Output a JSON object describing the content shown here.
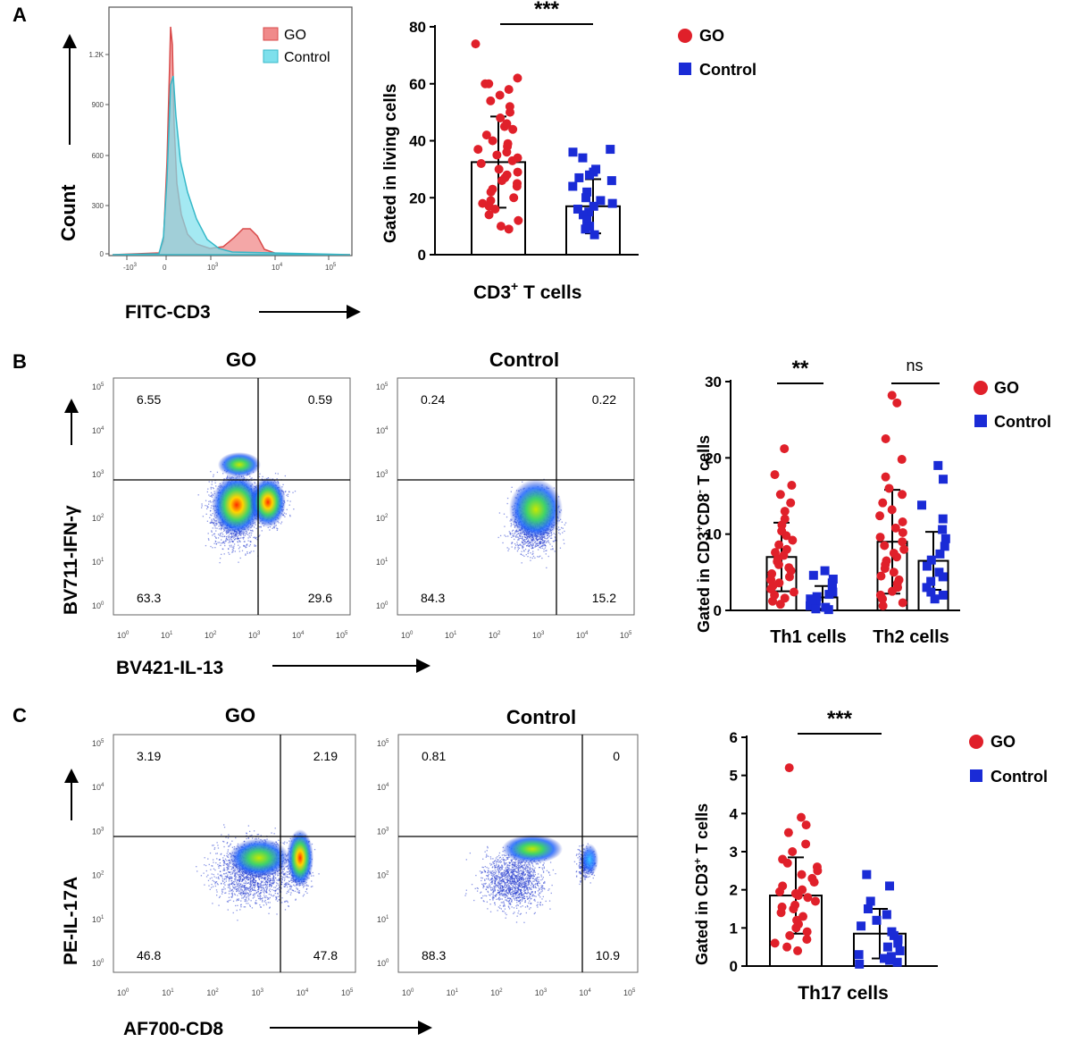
{
  "colors": {
    "go": "#e0202a",
    "control": "#1a2bd6",
    "go_hist": "#f08a8a",
    "control_hist": "#7ee0ec",
    "axis": "#000000"
  },
  "legend": {
    "go": "GO",
    "control": "Control"
  },
  "panelA": {
    "letter": "A",
    "histogram": {
      "ylabel": "Count",
      "xlabel": "FITC-CD3",
      "yticks": [
        "1.2K",
        "900",
        "600",
        "300",
        "0"
      ],
      "xticks": [
        "-10",
        "0",
        "10",
        "10",
        "10"
      ],
      "xtick_exps": [
        "3",
        "",
        "3",
        "4",
        "5"
      ],
      "legend_go": "GO",
      "legend_control": "Control"
    },
    "bar": {
      "ylabel": "Gated in living cells",
      "xlabel_main": "CD3",
      "xlabel_sup": "+",
      "xlabel_rest": " T cells",
      "yticks": [
        "80",
        "60",
        "40",
        "20",
        "0"
      ],
      "significance": "***"
    }
  },
  "panelB": {
    "letter": "B",
    "scatter_go": {
      "title": "GO",
      "q_ul": "6.55",
      "q_ur": "0.59",
      "q_ll": "63.3",
      "q_lr": "29.6"
    },
    "scatter_control": {
      "title": "Control",
      "q_ul": "0.24",
      "q_ur": "0.22",
      "q_ll": "84.3",
      "q_lr": "15.2"
    },
    "ylabel": "BV711-IFN-γ",
    "xlabel": "BV421-IL-13",
    "log_ticks_base": "10",
    "log_exps": [
      "0",
      "1",
      "2",
      "3",
      "4",
      "5"
    ],
    "bar": {
      "ylabel_pre": "Gated in CD3",
      "ylabel_sup1": "+",
      "ylabel_mid": "CD8",
      "ylabel_sup2": "-",
      "ylabel_post": " T cells",
      "yticks": [
        "30",
        "20",
        "10",
        "0"
      ],
      "group1": "Th1  cells",
      "group2": "Th2  cells",
      "sig1": "**",
      "sig2": "ns"
    }
  },
  "panelC": {
    "letter": "C",
    "scatter_go": {
      "title": "GO",
      "q_ul": "3.19",
      "q_ur": "2.19",
      "q_ll": "46.8",
      "q_lr": "47.8"
    },
    "scatter_control": {
      "title": "Control",
      "q_ul": "0.81",
      "q_ur": "0",
      "q_ll": "88.3",
      "q_lr": "10.9"
    },
    "ylabel": "PE-IL-17A",
    "xlabel": "AF700-CD8",
    "bar": {
      "ylabel_pre": "Gated in CD3",
      "ylabel_sup": "+",
      "ylabel_post": " T cells",
      "yticks": [
        "6",
        "5",
        "4",
        "3",
        "2",
        "1",
        "0"
      ],
      "xlabel": "Th17 cells",
      "significance": "***"
    }
  },
  "chart_data": [
    {
      "type": "bar",
      "title": "CD3+ T cells",
      "ylabel": "Gated in living cells",
      "ylim": [
        0,
        80
      ],
      "series": [
        {
          "name": "GO",
          "mean": 32.5,
          "sd": 16,
          "points": [
            74,
            62,
            60,
            60,
            58,
            56,
            54,
            52,
            50,
            48,
            46,
            45,
            44,
            42,
            40,
            39,
            38,
            37,
            36,
            35,
            34,
            33,
            32,
            30,
            29,
            28,
            27,
            26,
            25,
            24,
            23,
            22,
            20,
            19,
            18,
            17,
            16,
            14,
            12,
            10,
            9
          ]
        },
        {
          "name": "Control",
          "mean": 17,
          "sd": 9.5,
          "points": [
            37,
            36,
            34,
            30,
            29,
            28,
            27,
            26,
            24,
            22,
            20,
            19,
            18,
            17,
            16,
            15,
            14,
            12,
            10,
            9,
            7
          ]
        }
      ]
    },
    {
      "type": "bar",
      "title": "CD3+CD8- T cells",
      "ylabel": "Gated in CD3+CD8- T cells",
      "ylim": [
        0,
        30
      ],
      "categories": [
        "Th1 cells",
        "Th2 cells"
      ],
      "series": [
        {
          "name": "GO",
          "means": [
            7,
            9
          ],
          "sds": [
            4.5,
            6.8
          ],
          "points": [
            [
              21.2,
              17.8,
              16.4,
              15.2,
              14.1,
              13.0,
              12.0,
              11.2,
              10.4,
              9.8,
              9.2,
              8.6,
              8.0,
              7.6,
              7.2,
              6.8,
              6.4,
              6.0,
              5.6,
              5.2,
              4.8,
              4.4,
              4.0,
              3.6,
              3.2,
              2.8,
              2.4,
              2.0,
              1.6,
              1.2,
              0.8
            ],
            [
              28.2,
              27.2,
              22.5,
              19.8,
              17.5,
              16.0,
              15.2,
              14.1,
              13.2,
              12.4,
              11.6,
              10.8,
              10.2,
              9.6,
              9.0,
              8.5,
              8.0,
              7.5,
              7.0,
              6.5,
              6.0,
              5.5,
              5.0,
              4.5,
              4.0,
              3.5,
              3.0,
              2.5,
              2.0,
              1.5,
              1.0,
              0.6
            ]
          ]
        },
        {
          "name": "Control",
          "means": [
            1.7,
            6.5
          ],
          "sds": [
            1.5,
            3.8
          ],
          "points": [
            [
              5.2,
              4.6,
              4.1,
              3.6,
              3.2,
              2.8,
              2.4,
              2.1,
              1.8,
              1.5,
              1.2,
              0.9,
              0.6,
              0.4,
              0.2,
              0.1
            ],
            [
              19.0,
              17.2,
              13.8,
              12.0,
              10.6,
              9.4,
              8.4,
              7.4,
              6.6,
              5.8,
              5.0,
              4.4,
              3.8,
              3.0,
              2.4,
              2.0,
              1.5
            ]
          ]
        }
      ]
    },
    {
      "type": "bar",
      "title": "Th17 cells",
      "ylabel": "Gated in CD3+ T cells",
      "ylim": [
        0,
        6
      ],
      "series": [
        {
          "name": "GO",
          "mean": 1.85,
          "sd": 1.0,
          "points": [
            5.2,
            3.9,
            3.7,
            3.5,
            3.2,
            3.0,
            2.8,
            2.7,
            2.6,
            2.5,
            2.4,
            2.3,
            2.2,
            2.1,
            2.0,
            1.95,
            1.9,
            1.85,
            1.8,
            1.7,
            1.6,
            1.55,
            1.5,
            1.4,
            1.3,
            1.2,
            1.1,
            1.0,
            0.9,
            0.8,
            0.7,
            0.6,
            0.5,
            0.4
          ]
        },
        {
          "name": "Control",
          "mean": 0.85,
          "sd": 0.65,
          "points": [
            2.4,
            2.1,
            1.7,
            1.5,
            1.35,
            1.2,
            1.05,
            0.9,
            0.8,
            0.7,
            0.6,
            0.5,
            0.4,
            0.3,
            0.25,
            0.2,
            0.15,
            0.1,
            0.05
          ]
        }
      ]
    }
  ]
}
